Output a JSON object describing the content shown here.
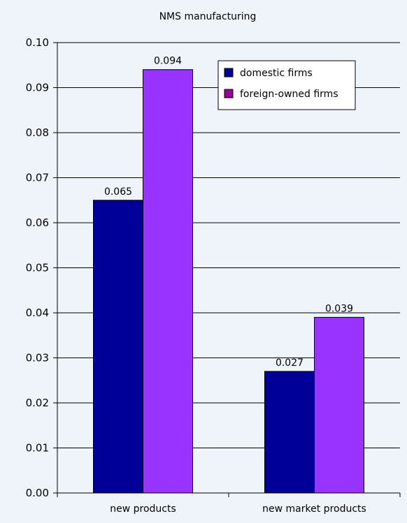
{
  "chart_data": {
    "type": "bar",
    "title": "NMS manufacturing",
    "xlabel": "",
    "ylabel": "",
    "categories": [
      "new products",
      "new market products"
    ],
    "series": [
      {
        "name": "domestic firms",
        "values": [
          0.065,
          0.027
        ],
        "labels": [
          "0.065",
          "0.027"
        ],
        "color": "#000099"
      },
      {
        "name": "foreign-owned firms",
        "values": [
          0.094,
          0.039
        ],
        "labels": [
          "0.094",
          "0.039"
        ],
        "color": "#9933ff"
      }
    ],
    "ylim": [
      0.0,
      0.1
    ],
    "yticks": [
      "0.00",
      "0.01",
      "0.02",
      "0.03",
      "0.04",
      "0.05",
      "0.06",
      "0.07",
      "0.08",
      "0.09",
      "0.10"
    ],
    "grid": true,
    "legend": "top-right",
    "legend_swatch_colors": [
      "#000099",
      "#990099"
    ],
    "background_color": "#eef4f9"
  }
}
